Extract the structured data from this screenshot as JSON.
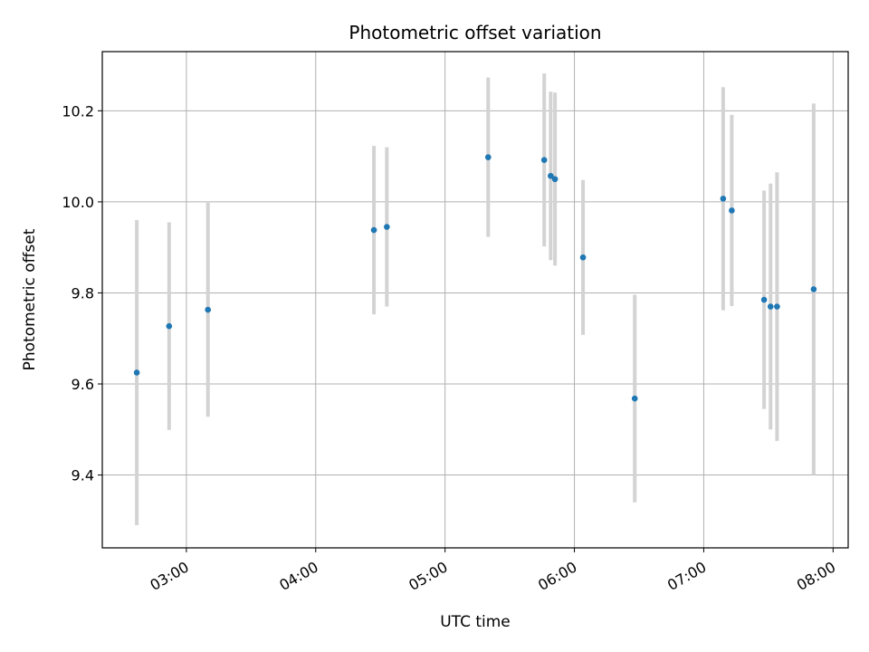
{
  "chart_data": {
    "type": "scatter",
    "title": "Photometric offset variation",
    "xlabel": "UTC time",
    "ylabel": "Photometric offset",
    "xlim": [
      "02:21",
      "08:07"
    ],
    "ylim": [
      9.24,
      10.33
    ],
    "x_ticks": [
      "03:00",
      "04:00",
      "05:00",
      "06:00",
      "07:00",
      "08:00"
    ],
    "y_ticks": [
      9.4,
      9.6,
      9.8,
      10.0,
      10.2
    ],
    "y_tick_labels": [
      "9.4",
      "9.6",
      "9.8",
      "10.0",
      "10.2"
    ],
    "grid": true,
    "marker_color": "#1f77b4",
    "errorbar_color": "#d3d3d3",
    "points": [
      {
        "x": "02:37",
        "y": 9.625,
        "yerr": 0.335
      },
      {
        "x": "02:52",
        "y": 9.727,
        "yerr": 0.228
      },
      {
        "x": "03:10",
        "y": 9.763,
        "yerr": 0.235
      },
      {
        "x": "04:27",
        "y": 9.938,
        "yerr": 0.185
      },
      {
        "x": "04:33",
        "y": 9.945,
        "yerr": 0.175
      },
      {
        "x": "05:20",
        "y": 10.098,
        "yerr": 0.175
      },
      {
        "x": "05:46",
        "y": 10.092,
        "yerr": 0.19
      },
      {
        "x": "05:49",
        "y": 10.057,
        "yerr": 0.185
      },
      {
        "x": "05:51",
        "y": 10.05,
        "yerr": 0.19
      },
      {
        "x": "06:04",
        "y": 9.878,
        "yerr": 0.17
      },
      {
        "x": "06:28",
        "y": 9.568,
        "yerr": 0.228
      },
      {
        "x": "07:09",
        "y": 10.007,
        "yerr": 0.245
      },
      {
        "x": "07:13",
        "y": 9.981,
        "yerr": 0.21
      },
      {
        "x": "07:28",
        "y": 9.785,
        "yerr": 0.24
      },
      {
        "x": "07:31",
        "y": 9.77,
        "yerr": 0.27
      },
      {
        "x": "07:34",
        "y": 9.77,
        "yerr": 0.295
      },
      {
        "x": "07:51",
        "y": 9.808,
        "yerr": 0.408
      }
    ]
  }
}
